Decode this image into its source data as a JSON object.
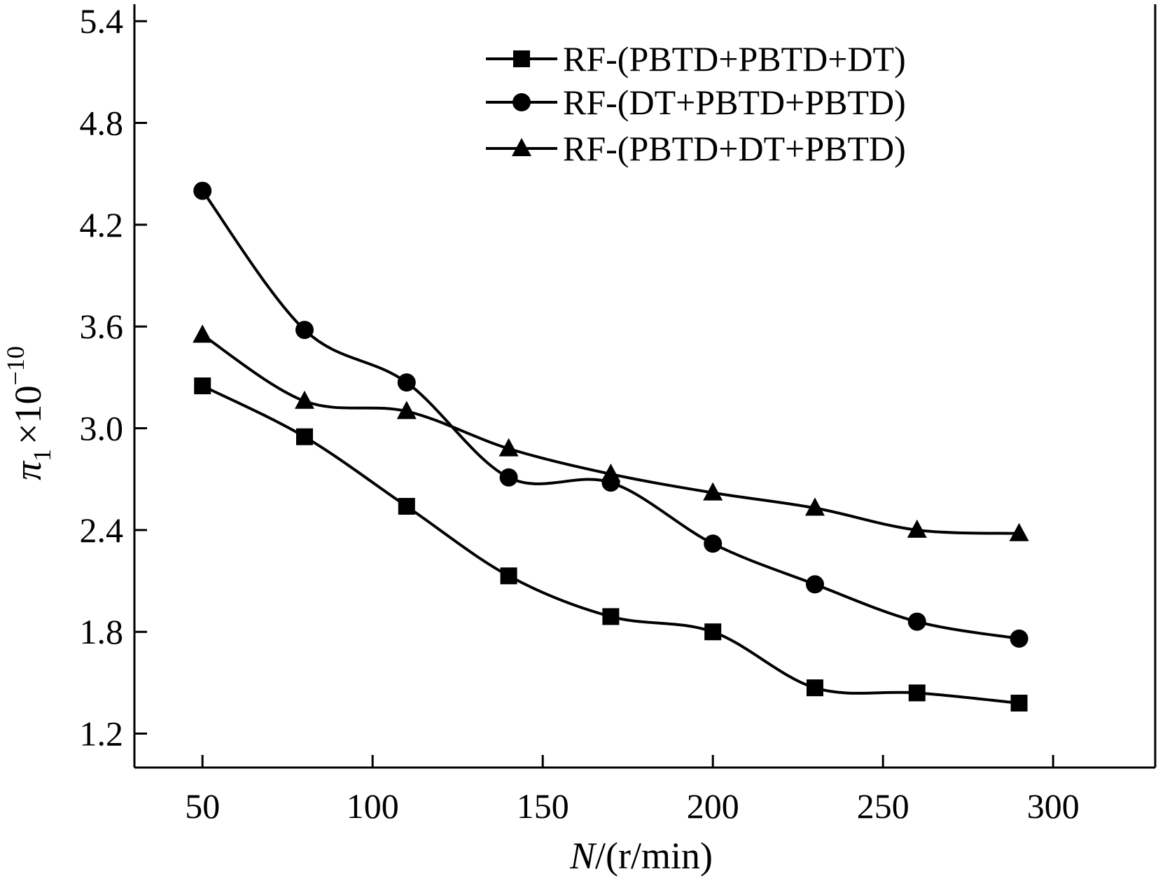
{
  "chart_data": {
    "type": "line",
    "title": "",
    "xlabel_var": "N",
    "xlabel_unit": "/(r/min)",
    "ylabel_var": "π",
    "ylabel_sub": "1",
    "ylabel_times": "×10",
    "ylabel_exp": "−10",
    "xlim": [
      30,
      330
    ],
    "ylim": [
      1.0,
      5.5
    ],
    "xticks": [
      50,
      100,
      150,
      200,
      250,
      300
    ],
    "xtick_labels": [
      "50",
      "100",
      "150",
      "200",
      "250",
      "300"
    ],
    "yticks": [
      1.2,
      1.8,
      2.4,
      3.0,
      3.6,
      4.2,
      4.8,
      5.4
    ],
    "ytick_labels": [
      "1.2",
      "1.8",
      "2.4",
      "3.0",
      "3.6",
      "4.2",
      "4.8",
      "5.4"
    ],
    "x": [
      50,
      80,
      110,
      140,
      170,
      200,
      230,
      260,
      290
    ],
    "series": [
      {
        "name": "RF-(PBTD+PBTD+DT)",
        "marker": "square",
        "values": [
          3.25,
          2.95,
          2.54,
          2.13,
          1.89,
          1.8,
          1.47,
          1.44,
          1.38
        ]
      },
      {
        "name": "RF-(DT+PBTD+PBTD)",
        "marker": "circle",
        "values": [
          4.4,
          3.58,
          3.27,
          2.71,
          2.68,
          2.32,
          2.08,
          1.86,
          1.76
        ]
      },
      {
        "name": "RF-(PBTD+DT+PBTD)",
        "marker": "triangle",
        "values": [
          3.55,
          3.16,
          3.1,
          2.88,
          2.73,
          2.62,
          2.53,
          2.4,
          2.38
        ]
      }
    ],
    "legend_position": "top-right",
    "grid": false,
    "color": "#000000"
  }
}
